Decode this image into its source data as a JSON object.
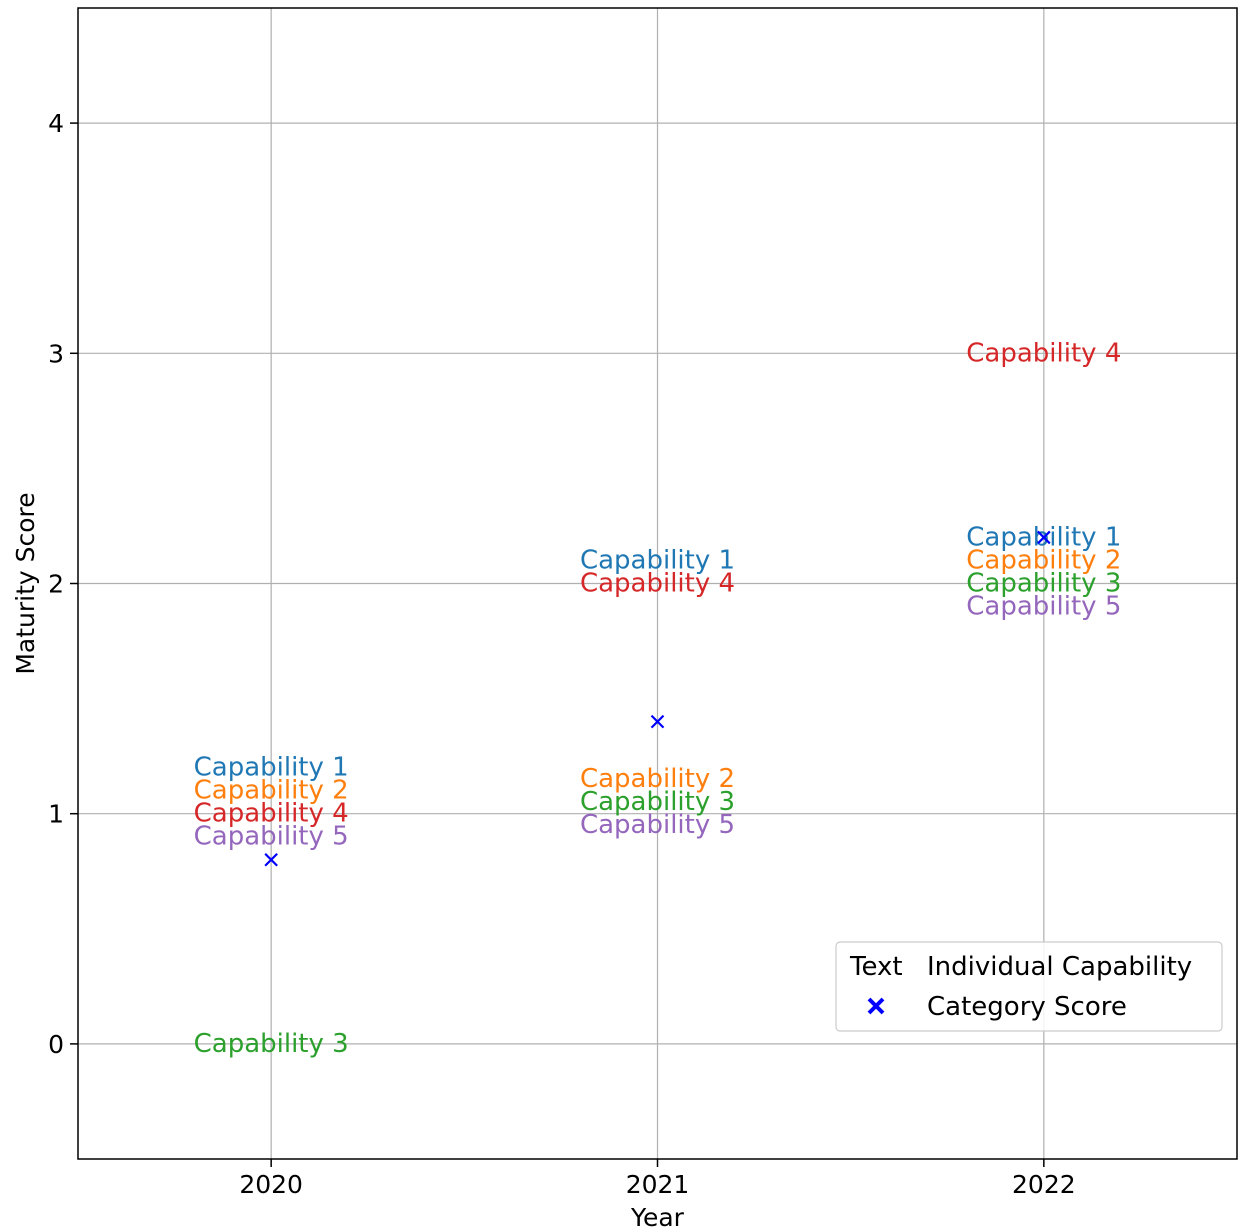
{
  "chart_data": {
    "type": "scatter",
    "title": "",
    "xlabel": "Year",
    "ylabel": "Maturity Score",
    "x_ticks": [
      "2020",
      "2021",
      "2022"
    ],
    "y_ticks": [
      "0",
      "1",
      "2",
      "3",
      "4"
    ],
    "xlim": [
      2019.5,
      2022.5
    ],
    "ylim": [
      -0.5,
      4.5
    ],
    "grid": true,
    "legend_position": "lower-right",
    "colors": {
      "Capability 1": "#1f77b4",
      "Capability 2": "#ff7f0e",
      "Capability 3": "#2ca02c",
      "Capability 4": "#d62728",
      "Capability 5": "#9467bd",
      "category": "#0000ff"
    },
    "capabilities": [
      {
        "name": "Capability 1",
        "x": [
          2020,
          2021,
          2022
        ],
        "y": [
          1.2,
          2.1,
          2.2
        ]
      },
      {
        "name": "Capability 2",
        "x": [
          2020,
          2021,
          2022
        ],
        "y": [
          1.1,
          1.15,
          2.1
        ]
      },
      {
        "name": "Capability 3",
        "x": [
          2020,
          2021,
          2022
        ],
        "y": [
          0.0,
          1.05,
          2.0
        ]
      },
      {
        "name": "Capability 4",
        "x": [
          2020,
          2021,
          2022
        ],
        "y": [
          1.0,
          2.0,
          3.0
        ]
      },
      {
        "name": "Capability 5",
        "x": [
          2020,
          2021,
          2022
        ],
        "y": [
          0.9,
          0.95,
          1.9
        ]
      }
    ],
    "category_score": {
      "x": [
        2020,
        2021,
        2022
      ],
      "y": [
        0.8,
        1.4,
        2.2
      ]
    },
    "legend": [
      {
        "marker": "Text",
        "label": "Individual Capability"
      },
      {
        "marker": "x-marker",
        "label": "Category Score"
      }
    ]
  }
}
